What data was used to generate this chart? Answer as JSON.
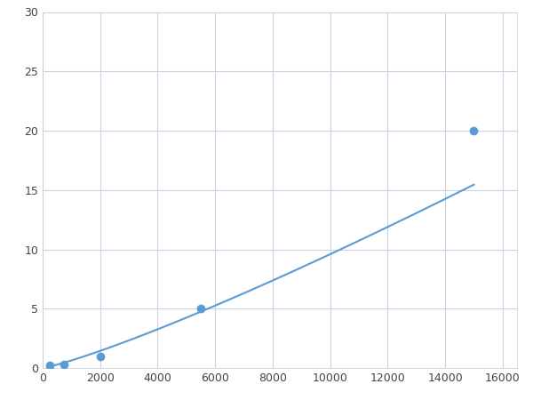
{
  "x": [
    250,
    750,
    2000,
    5500,
    15000
  ],
  "y": [
    0.2,
    0.3,
    1.0,
    5.0,
    20.0
  ],
  "line_color": "#5b9bd5",
  "marker_color": "#5b9bd5",
  "marker_size": 6,
  "linewidth": 1.5,
  "xlim": [
    0,
    16500
  ],
  "ylim": [
    0,
    30
  ],
  "xticks": [
    0,
    2000,
    4000,
    6000,
    8000,
    10000,
    12000,
    14000,
    16000
  ],
  "yticks": [
    0,
    5,
    10,
    15,
    20,
    25,
    30
  ],
  "grid": true,
  "background_color": "#ffffff",
  "grid_color": "#c8d4e3",
  "spine_color": "#cccccc"
}
